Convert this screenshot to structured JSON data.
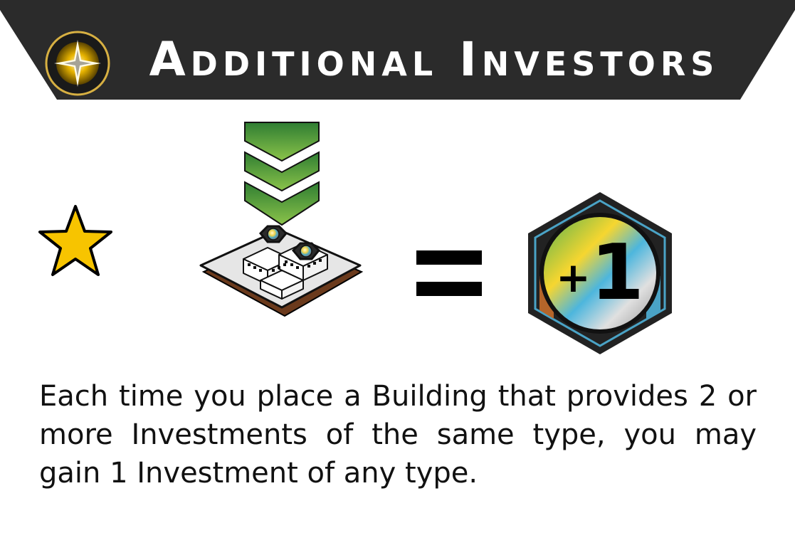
{
  "header": {
    "title": "Additional Investors",
    "emblem_icon": "compass-star-icon",
    "background_color": "#2b2b2b"
  },
  "rule": {
    "condition_icon": "star-icon",
    "building_icon": "building-tile-icon",
    "placement_icon": "chevron-arrows-down-icon",
    "equals_icon": "equals-icon",
    "reward": {
      "icon": "investment-token-icon",
      "plus": "+",
      "amount": "1"
    }
  },
  "description": "Each time you place a Building that provides 2 or more Investments of the same type, you may gain 1 Investment of any type.",
  "colors": {
    "star": "#f7c400",
    "arrow_green": "#2f8a3a",
    "token_dark": "#222222"
  }
}
